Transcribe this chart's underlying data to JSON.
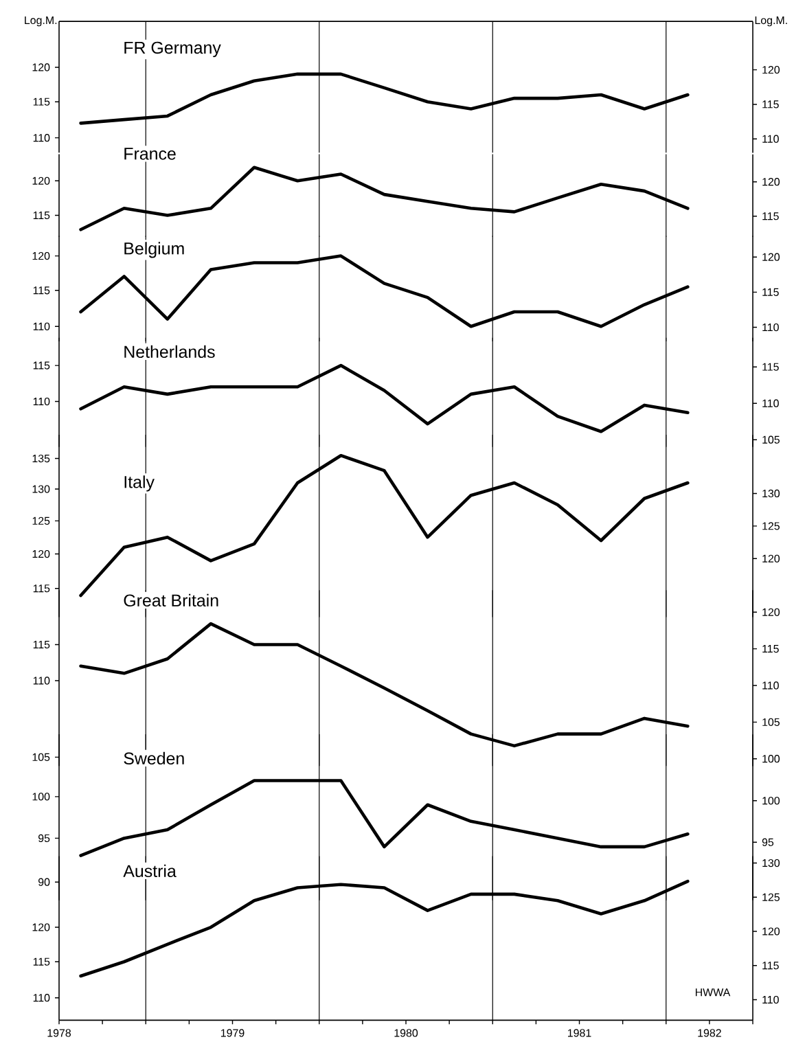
{
  "chart_data": [
    {
      "type": "line",
      "title": "FR Germany",
      "ylabel": "Log.M.",
      "y2label": "Log.M.",
      "log": true,
      "tick_labels": "y",
      "color": "#000000",
      "x": [
        1978.625,
        1978.875,
        1979.125,
        1979.375,
        1979.625,
        1979.875,
        1980.125,
        1980.375,
        1980.625,
        1980.875,
        1981.125,
        1981.375,
        1981.625,
        1981.875,
        1982.125
      ],
      "values": [
        112,
        112.5,
        113,
        116,
        118,
        119,
        119,
        117,
        115,
        114,
        115.5,
        115.5,
        116,
        114,
        116
      ],
      "xlim": [
        1978.5,
        1982.5
      ],
      "ylim": [
        108,
        127
      ],
      "yticks": [
        110,
        115,
        120
      ],
      "y2lim": [
        108,
        127
      ],
      "y2ticks": [
        110,
        115,
        120
      ],
      "ref_lines": [
        {
          "axis": "x",
          "value": 1979
        },
        {
          "axis": "x",
          "value": 1980
        },
        {
          "axis": "x",
          "value": 1981
        },
        {
          "axis": "x",
          "value": 1982
        }
      ]
    },
    {
      "type": "line",
      "title": "France",
      "log": true,
      "tick_labels": "y",
      "color": "#000000",
      "x": [
        1978.625,
        1978.875,
        1979.125,
        1979.375,
        1979.625,
        1979.875,
        1980.125,
        1980.375,
        1980.625,
        1980.875,
        1981.125,
        1981.375,
        1981.625,
        1981.875,
        1982.125
      ],
      "values": [
        113,
        116,
        115,
        116,
        122,
        120,
        121,
        118,
        117,
        116,
        115.5,
        117.5,
        119.5,
        118.5,
        116
      ],
      "xlim": [
        1978.5,
        1982.5
      ],
      "ylim": [
        112,
        124
      ],
      "yticks": [
        115,
        120
      ],
      "y2lim": [
        112,
        124
      ],
      "y2ticks": [
        115,
        120
      ],
      "ref_lines": [
        {
          "axis": "x",
          "value": 1979
        },
        {
          "axis": "x",
          "value": 1980
        },
        {
          "axis": "x",
          "value": 1981
        },
        {
          "axis": "x",
          "value": 1982
        }
      ]
    },
    {
      "type": "line",
      "title": "Belgium",
      "log": true,
      "tick_labels": "y",
      "color": "#000000",
      "x": [
        1978.625,
        1978.875,
        1979.125,
        1979.375,
        1979.625,
        1979.875,
        1980.125,
        1980.375,
        1980.625,
        1980.875,
        1981.125,
        1981.375,
        1981.625,
        1981.875,
        1982.125
      ],
      "values": [
        112,
        117,
        111,
        118,
        119,
        119,
        120,
        116,
        114,
        110,
        112,
        112,
        110,
        113,
        115.5
      ],
      "xlim": [
        1978.5,
        1982.5
      ],
      "ylim": [
        108,
        123
      ],
      "yticks": [
        110,
        115,
        120
      ],
      "y2lim": [
        108,
        123
      ],
      "y2ticks": [
        110,
        115,
        120
      ],
      "ref_lines": [
        {
          "axis": "x",
          "value": 1979
        },
        {
          "axis": "x",
          "value": 1980
        },
        {
          "axis": "x",
          "value": 1981
        },
        {
          "axis": "x",
          "value": 1982
        }
      ]
    },
    {
      "type": "line",
      "title": "Netherlands",
      "log": true,
      "tick_labels": "y",
      "color": "#000000",
      "x": [
        1978.625,
        1978.875,
        1979.125,
        1979.375,
        1979.625,
        1979.875,
        1980.125,
        1980.375,
        1980.625,
        1980.875,
        1981.125,
        1981.375,
        1981.625,
        1981.875,
        1982.125
      ],
      "values": [
        109,
        112,
        111,
        112,
        112,
        112,
        115,
        111.5,
        107,
        111,
        112,
        108,
        106,
        109.5,
        108.5
      ],
      "xlim": [
        1978.5,
        1982.5
      ],
      "ylim": [
        104,
        119
      ],
      "yticks": [
        110,
        115
      ],
      "y2lim": [
        104,
        119
      ],
      "y2ticks": [
        105,
        110,
        115
      ],
      "ref_lines": [
        {
          "axis": "x",
          "value": 1979
        },
        {
          "axis": "x",
          "value": 1980
        },
        {
          "axis": "x",
          "value": 1981
        },
        {
          "axis": "x",
          "value": 1982
        }
      ]
    },
    {
      "type": "line",
      "title": "Italy",
      "log": true,
      "tick_labels": "y",
      "color": "#000000",
      "x": [
        1978.625,
        1978.875,
        1979.125,
        1979.375,
        1979.625,
        1979.875,
        1980.125,
        1980.375,
        1980.625,
        1980.875,
        1981.125,
        1981.375,
        1981.625,
        1981.875,
        1982.125
      ],
      "values": [
        114,
        121,
        122.5,
        119,
        121.5,
        131,
        135.5,
        133,
        122.5,
        129,
        131,
        127.5,
        122,
        128.5,
        131
      ],
      "xlim": [
        1978.5,
        1982.5
      ],
      "ylim": [
        111,
        139
      ],
      "yticks": [
        115,
        120,
        125,
        130,
        135
      ],
      "y2lim": [
        111,
        139
      ],
      "y2ticks": [
        120,
        125,
        130
      ],
      "ref_lines": [
        {
          "axis": "x",
          "value": 1979
        },
        {
          "axis": "x",
          "value": 1980
        },
        {
          "axis": "x",
          "value": 1981
        },
        {
          "axis": "x",
          "value": 1982
        }
      ]
    },
    {
      "type": "line",
      "title": "Great Britain",
      "log": true,
      "tick_labels": "y",
      "color": "#000000",
      "x": [
        1978.625,
        1978.875,
        1979.125,
        1979.375,
        1979.625,
        1979.875,
        1980.125,
        1980.375,
        1980.625,
        1980.875,
        1981.125,
        1981.375,
        1981.625,
        1981.875,
        1982.125
      ],
      "values": [
        112,
        111,
        113,
        118,
        115,
        115,
        112,
        109,
        106,
        103,
        101.5,
        103,
        103,
        105,
        104
      ],
      "xlim": [
        1978.5,
        1982.5
      ],
      "ylim": [
        99,
        123
      ],
      "yticks": [
        110,
        115
      ],
      "y2lim": [
        99,
        123
      ],
      "y2ticks": [
        100,
        105,
        110,
        115,
        120
      ],
      "ref_lines": [
        {
          "axis": "x",
          "value": 1979
        },
        {
          "axis": "x",
          "value": 1980
        },
        {
          "axis": "x",
          "value": 1981
        },
        {
          "axis": "x",
          "value": 1982
        }
      ]
    },
    {
      "type": "line",
      "title": "Sweden",
      "log": true,
      "tick_labels": "y",
      "color": "#000000",
      "x": [
        1978.625,
        1978.875,
        1979.125,
        1979.375,
        1979.625,
        1979.875,
        1980.125,
        1980.375,
        1980.625,
        1980.875,
        1981.125,
        1981.375,
        1981.625,
        1981.875,
        1982.125
      ],
      "values": [
        93,
        95,
        96,
        99,
        102,
        102,
        102,
        94,
        99,
        97,
        96,
        95,
        94,
        94,
        95.5
      ],
      "xlim": [
        1978.5,
        1982.5
      ],
      "ylim": [
        88,
        108
      ],
      "yticks": [
        90,
        95,
        100,
        105
      ],
      "y2lim": [
        88,
        108
      ],
      "y2ticks": [
        95,
        100
      ],
      "ref_lines": [
        {
          "axis": "x",
          "value": 1979
        },
        {
          "axis": "x",
          "value": 1980
        },
        {
          "axis": "x",
          "value": 1981
        },
        {
          "axis": "x",
          "value": 1982
        }
      ]
    },
    {
      "type": "line",
      "title": "Austria",
      "log": true,
      "color": "#000000",
      "annotations": [
        "HWWA"
      ],
      "x": [
        1978.625,
        1978.875,
        1979.125,
        1979.375,
        1979.625,
        1979.875,
        1980.125,
        1980.375,
        1980.625,
        1980.875,
        1981.125,
        1981.375,
        1981.625,
        1981.875,
        1982.125
      ],
      "values": [
        113,
        115,
        117.5,
        120,
        124,
        126,
        126.5,
        126,
        122.5,
        125,
        125,
        124,
        122,
        124,
        127
      ],
      "xlim": [
        1978.5,
        1982.5
      ],
      "xticks": [
        {
          "value": 1978.5,
          "label": "1978"
        },
        {
          "value": 1978.75,
          "label": null
        },
        {
          "value": 1979,
          "label": null
        },
        {
          "value": 1979.25,
          "label": null
        },
        {
          "value": 1979.5,
          "label": "1979"
        },
        {
          "value": 1979.75,
          "label": null
        },
        {
          "value": 1980,
          "label": null
        },
        {
          "value": 1980.25,
          "label": null
        },
        {
          "value": 1980.5,
          "label": "1980"
        },
        {
          "value": 1980.75,
          "label": null
        },
        {
          "value": 1981,
          "label": null
        },
        {
          "value": 1981.25,
          "label": null
        },
        {
          "value": 1981.5,
          "label": "1981"
        },
        {
          "value": 1981.75,
          "label": null
        },
        {
          "value": 1982,
          "label": null
        },
        {
          "value": 1982.25,
          "label": "1982"
        },
        {
          "value": 1982.5,
          "label": null
        }
      ],
      "ylim": [
        107,
        131
      ],
      "yticks": [
        110,
        115,
        120
      ],
      "y2lim": [
        107,
        131
      ],
      "y2ticks": [
        110,
        115,
        120,
        125,
        130
      ],
      "ref_lines": [
        {
          "axis": "x",
          "value": 1979
        },
        {
          "axis": "x",
          "value": 1980
        },
        {
          "axis": "x",
          "value": 1981
        },
        {
          "axis": "x",
          "value": 1982
        }
      ]
    }
  ]
}
